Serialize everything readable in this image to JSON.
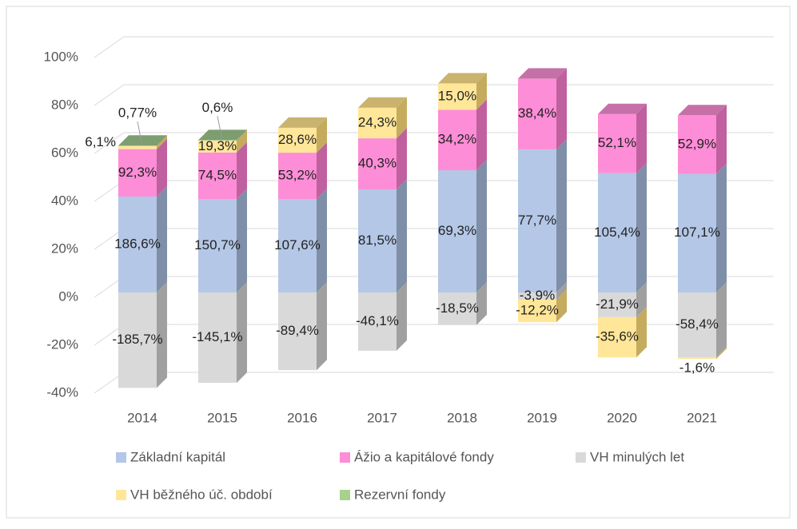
{
  "chart_data": {
    "type": "bar3d_stacked",
    "categories": [
      "2014",
      "2015",
      "2016",
      "2017",
      "2018",
      "2019",
      "2020",
      "2021"
    ],
    "series": [
      {
        "name": "Základní kapitál",
        "color": "#b4c7e7",
        "side": "#7f8fa8",
        "values": [
          40,
          39,
          39,
          43,
          51,
          59.7,
          49.8,
          49.5
        ],
        "labels": [
          "186,6%",
          "150,7%",
          "107,6%",
          "81,5%",
          "69,3%",
          "77,7%",
          "105,4%",
          "107,1%"
        ]
      },
      {
        "name": "Ážio a kapitálové fondy",
        "color": "#fd8dd6",
        "side": "#c0609f",
        "values": [
          19.8,
          19.4,
          19.3,
          21.3,
          25.2,
          29.5,
          24.6,
          24.4
        ],
        "labels": [
          "92,3%",
          "74,5%",
          "53,2%",
          "40,3%",
          "34,2%",
          "38,4%",
          "52,1%",
          "52,9%"
        ]
      },
      {
        "name": "VH minulých let",
        "color": "#d9d9d9",
        "side": "#a0a0a0",
        "values": [
          -39.8,
          -37.7,
          -32.4,
          -24.3,
          -13.6,
          -3.0,
          -10.3,
          -27.0
        ],
        "labels": [
          "-185,7%",
          "-145,1%",
          "-89,4%",
          "-46,1%",
          "-18,5%",
          "-3,9%",
          "-21,9%",
          "-58,4%"
        ]
      },
      {
        "name": "VH běžného úč. období",
        "color": "#ffe699",
        "side": "#c4ab5e",
        "values": [
          1.3,
          5.0,
          10.4,
          12.8,
          11.0,
          -9.4,
          -16.8,
          -0.7
        ],
        "labels": [
          "6,1%",
          "19,3%",
          "28,6%",
          "24,3%",
          "15,0%",
          "-12,2%",
          "-35,6%",
          "-1,6%"
        ]
      },
      {
        "name": "Rezervní fondy",
        "color": "#a9d18e",
        "side": "#6f9460",
        "values": [
          0.17,
          0.16,
          null,
          null,
          null,
          null,
          null,
          null
        ],
        "labels": [
          "0,77%",
          "0,6%",
          null,
          null,
          null,
          null,
          null,
          null
        ]
      }
    ],
    "ylim": [
      -40,
      100
    ],
    "yticks": [
      {
        "value": -40,
        "label": "-40%"
      },
      {
        "value": -20,
        "label": "-20%"
      },
      {
        "value": 0,
        "label": "0%"
      },
      {
        "value": 20,
        "label": "20%"
      },
      {
        "value": 40,
        "label": "40%"
      },
      {
        "value": 60,
        "label": "60%"
      },
      {
        "value": 80,
        "label": "80%"
      },
      {
        "value": 100,
        "label": "100%"
      }
    ],
    "grid": true,
    "legend": "bottom"
  }
}
